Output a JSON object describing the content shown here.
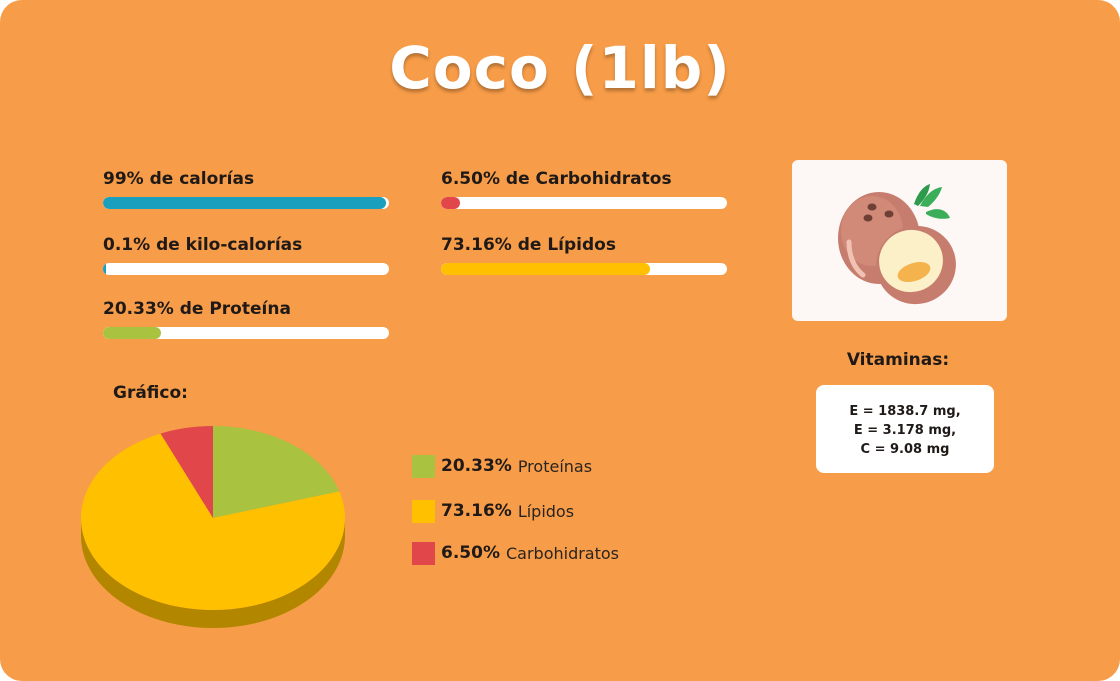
{
  "title": "Coco (1lb)",
  "stats": [
    {
      "key": "calorias",
      "label": "99% de calorías",
      "fraction": 0.99,
      "color": "#1b9fbf"
    },
    {
      "key": "kilocalorias",
      "label": "0.1% de kilo-calorías",
      "fraction": 0.001,
      "color": "#1b9fbf"
    },
    {
      "key": "proteina",
      "label": "20.33% de Proteína",
      "fraction": 0.2033,
      "color": "#a9c23f"
    },
    {
      "key": "carbohidratos",
      "label": "6.50% de Carbohidratos",
      "fraction": 0.065,
      "color": "#e0464a"
    },
    {
      "key": "lipidos",
      "label": "73.16% de Lípidos",
      "fraction": 0.7316,
      "color": "#ffc000"
    }
  ],
  "image": {
    "icon": "coconut-icon"
  },
  "vitamins": {
    "title": "Vitaminas:",
    "lines": [
      "E = 1838.7 mg,",
      "E = 3.178 mg,",
      "C = 9.08 mg"
    ]
  },
  "chart_label": "Gráfico:",
  "legend": [
    {
      "pct": "20.33%",
      "name": "Proteínas",
      "color": "#a9c23f"
    },
    {
      "pct": "73.16%",
      "name": "Lípidos",
      "color": "#ffc000"
    },
    {
      "pct": "6.50%",
      "name": "Carbohidratos",
      "color": "#e0464a"
    }
  ],
  "chart_data": {
    "type": "pie",
    "categories": [
      "Proteínas",
      "Lípidos",
      "Carbohidratos"
    ],
    "values": [
      20.33,
      73.16,
      6.5
    ],
    "colors": [
      "#a9c23f",
      "#ffc000",
      "#e0464a"
    ],
    "title": "Gráfico:"
  }
}
